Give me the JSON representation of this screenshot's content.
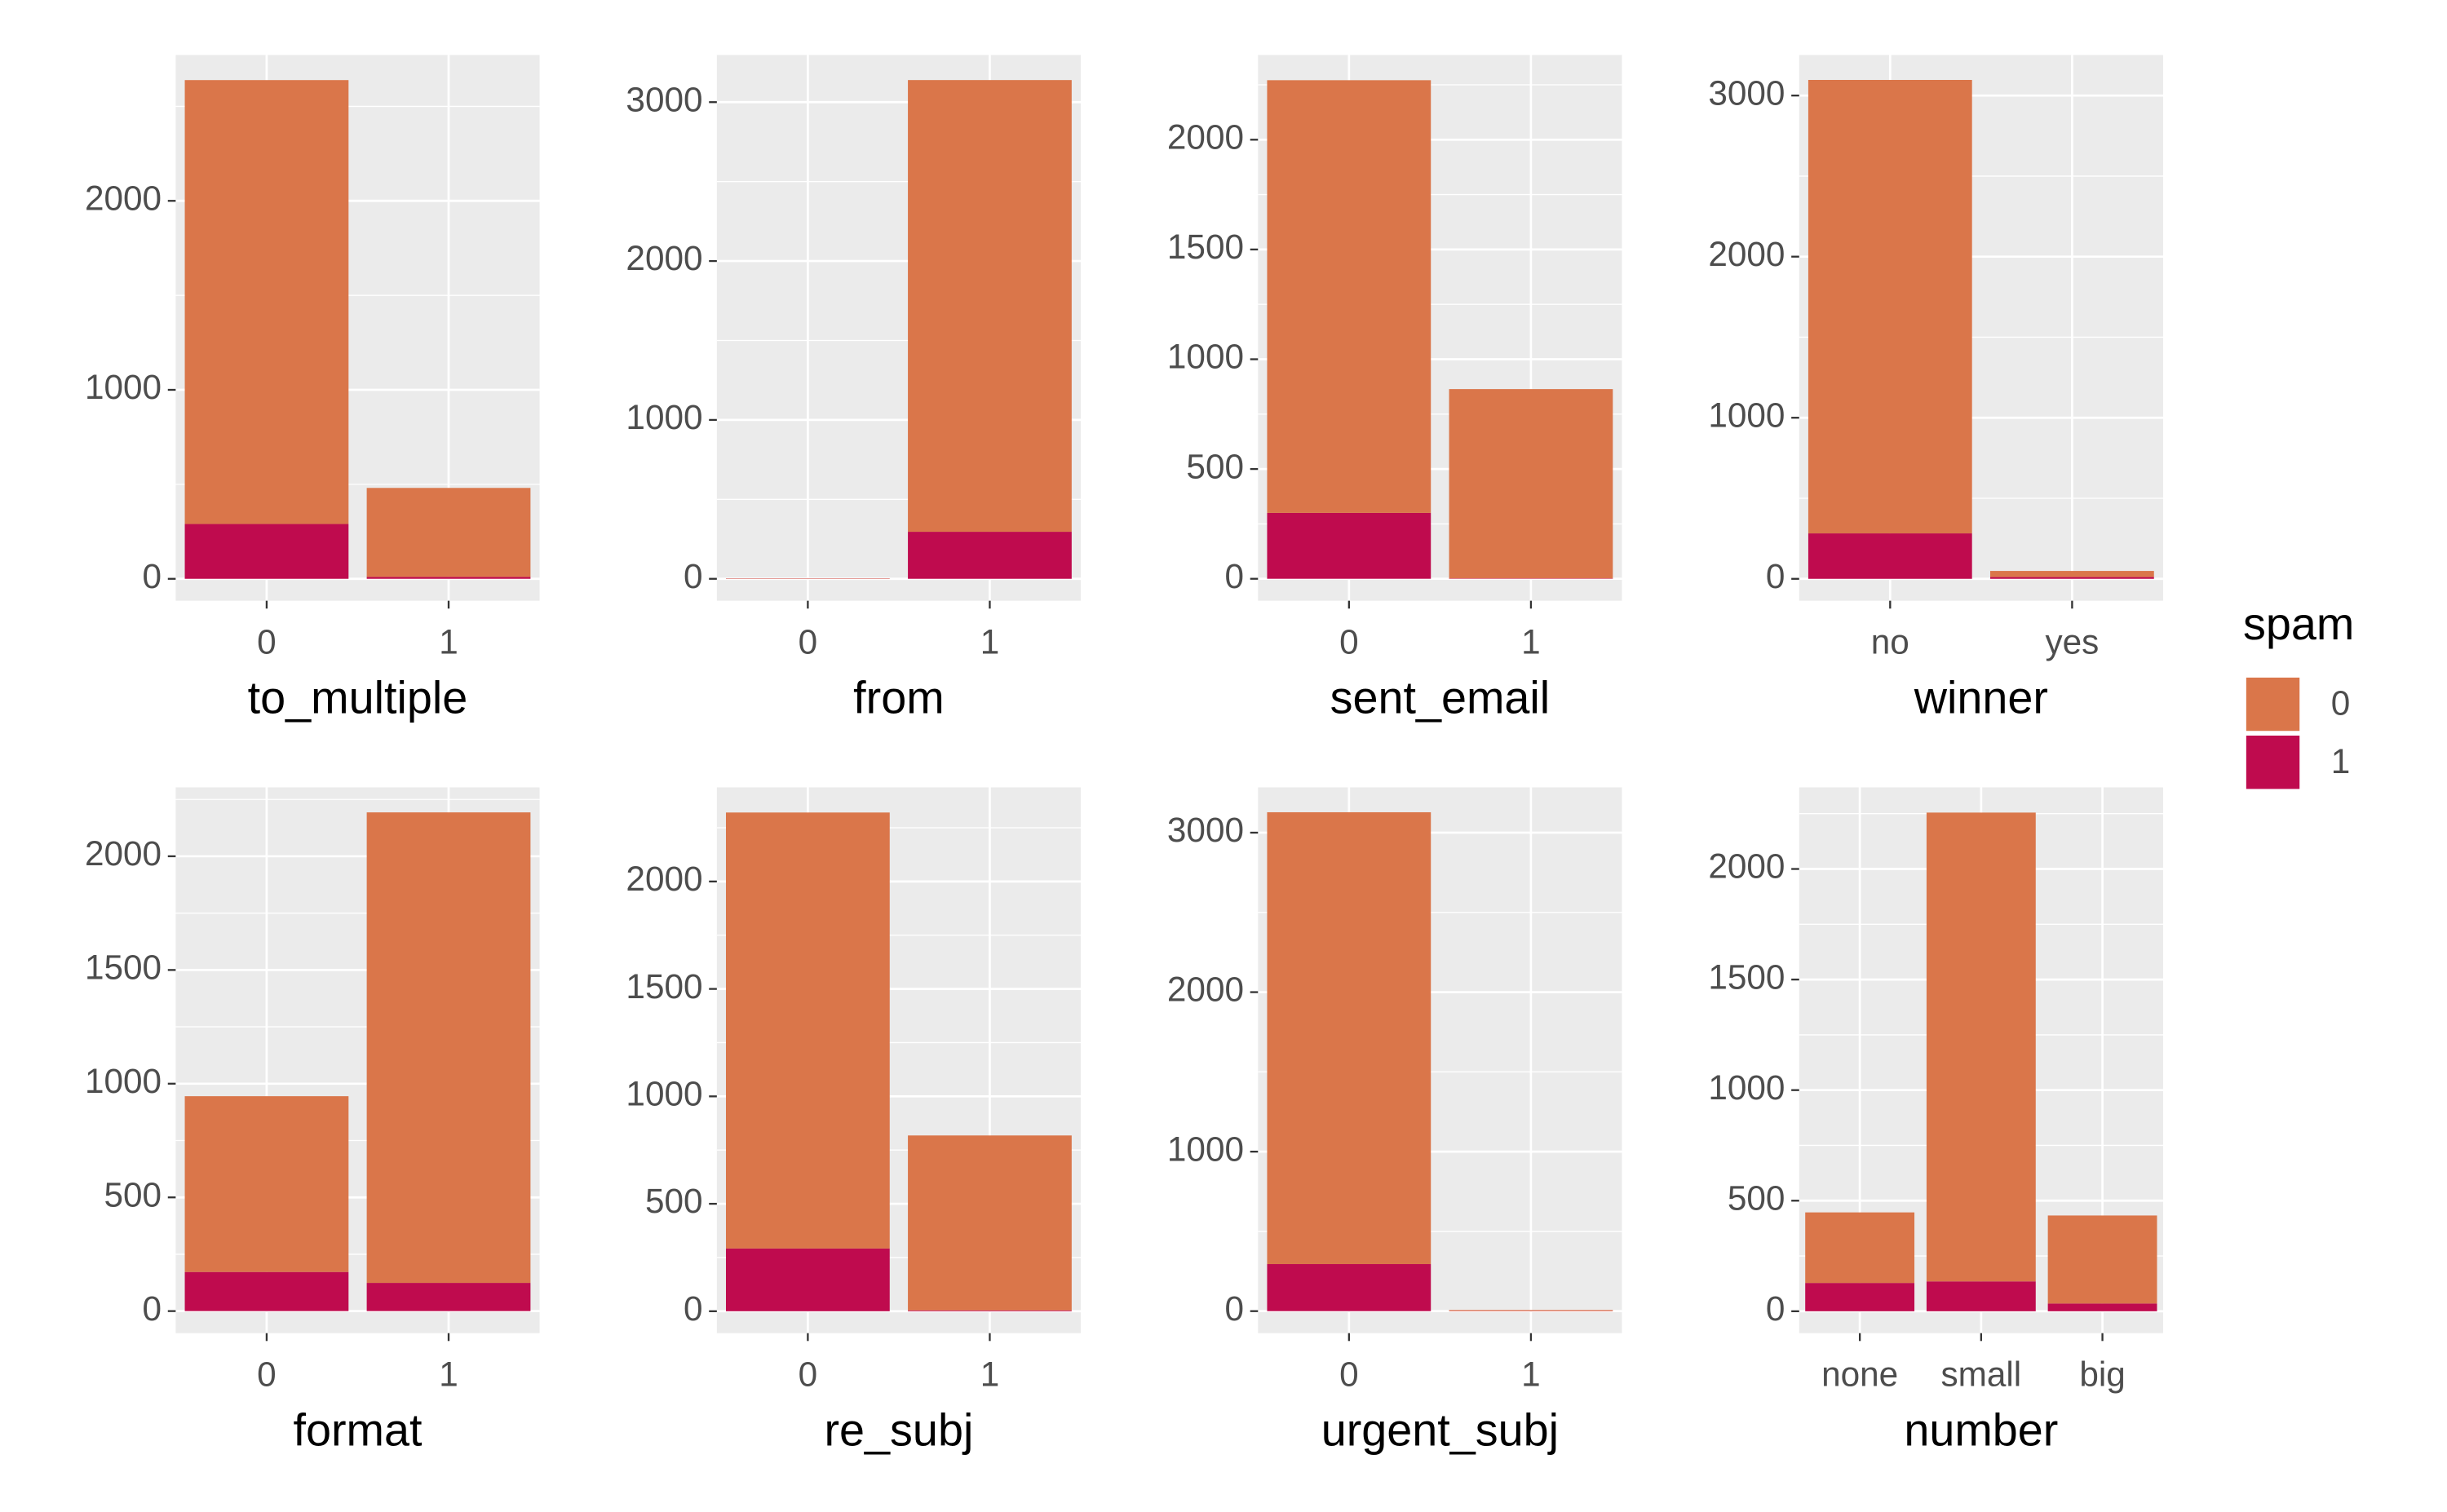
{
  "legend": {
    "title": "spam"
  },
  "chart_data": [
    {
      "type": "bar",
      "stacked": true,
      "xlabel": "to_multiple",
      "categories": [
        "0",
        "1"
      ],
      "series": [
        {
          "name": "0",
          "color": "#DA764A",
          "values": [
            2349,
            471
          ]
        },
        {
          "name": "1",
          "color": "#BF0B4E",
          "values": [
            290,
            10
          ]
        }
      ],
      "ylim": [
        -116,
        2772
      ],
      "yticks": [
        0,
        1000,
        2000
      ],
      "grid": true
    },
    {
      "type": "bar",
      "stacked": true,
      "xlabel": "from",
      "categories": [
        "0",
        "1"
      ],
      "series": [
        {
          "name": "0",
          "color": "#DA764A",
          "values": [
            2,
            2843
          ]
        },
        {
          "name": "1",
          "color": "#BF0B4E",
          "values": [
            1,
            296
          ]
        }
      ],
      "ylim": [
        -138,
        3297
      ],
      "yticks": [
        0,
        1000,
        2000,
        3000
      ],
      "grid": true
    },
    {
      "type": "bar",
      "stacked": true,
      "xlabel": "sent_email",
      "categories": [
        "0",
        "1"
      ],
      "series": [
        {
          "name": "0",
          "color": "#DA764A",
          "values": [
            1971,
            862
          ]
        },
        {
          "name": "1",
          "color": "#BF0B4E",
          "values": [
            300,
            2
          ]
        }
      ],
      "ylim": [
        -100,
        2386
      ],
      "yticks": [
        0,
        500,
        1000,
        1500,
        2000
      ],
      "grid": true
    },
    {
      "type": "bar",
      "stacked": true,
      "xlabel": "winner",
      "categories": [
        "no",
        "yes"
      ],
      "series": [
        {
          "name": "0",
          "color": "#DA764A",
          "values": [
            2815,
            38
          ]
        },
        {
          "name": "1",
          "color": "#BF0B4E",
          "values": [
            282,
            11
          ]
        }
      ],
      "ylim": [
        -136,
        3252
      ],
      "yticks": [
        0,
        1000,
        2000,
        3000
      ],
      "grid": true
    },
    {
      "type": "bar",
      "stacked": true,
      "xlabel": "format",
      "categories": [
        "0",
        "1"
      ],
      "series": [
        {
          "name": "0",
          "color": "#DA764A",
          "values": [
            773,
            2069
          ]
        },
        {
          "name": "1",
          "color": "#BF0B4E",
          "values": [
            172,
            124
          ]
        }
      ],
      "ylim": [
        -97,
        2303
      ],
      "yticks": [
        0,
        500,
        1000,
        1500,
        2000
      ],
      "grid": true
    },
    {
      "type": "bar",
      "stacked": true,
      "xlabel": "re_subj",
      "categories": [
        "0",
        "1"
      ],
      "series": [
        {
          "name": "0",
          "color": "#DA764A",
          "values": [
            2029,
            814
          ]
        },
        {
          "name": "1",
          "color": "#BF0B4E",
          "values": [
            292,
            4
          ]
        }
      ],
      "ylim": [
        -102,
        2438
      ],
      "yticks": [
        0,
        500,
        1000,
        1500,
        2000
      ],
      "grid": true
    },
    {
      "type": "bar",
      "stacked": true,
      "xlabel": "urgent_subj",
      "categories": [
        "0",
        "1"
      ],
      "series": [
        {
          "name": "0",
          "color": "#DA764A",
          "values": [
            2833,
            6
          ]
        },
        {
          "name": "1",
          "color": "#BF0B4E",
          "values": [
            295,
            1
          ]
        }
      ],
      "ylim": [
        -138,
        3284
      ],
      "yticks": [
        0,
        1000,
        2000,
        3000
      ],
      "grid": true
    },
    {
      "type": "bar",
      "stacked": true,
      "xlabel": "number",
      "categories": [
        "none",
        "small",
        "big"
      ],
      "series": [
        {
          "name": "0",
          "color": "#DA764A",
          "values": [
            319,
            2120,
            398
          ]
        },
        {
          "name": "1",
          "color": "#BF0B4E",
          "values": [
            128,
            135,
            35
          ]
        }
      ],
      "ylim": [
        -99,
        2369
      ],
      "yticks": [
        0,
        500,
        1000,
        1500,
        2000
      ],
      "grid": true
    }
  ]
}
